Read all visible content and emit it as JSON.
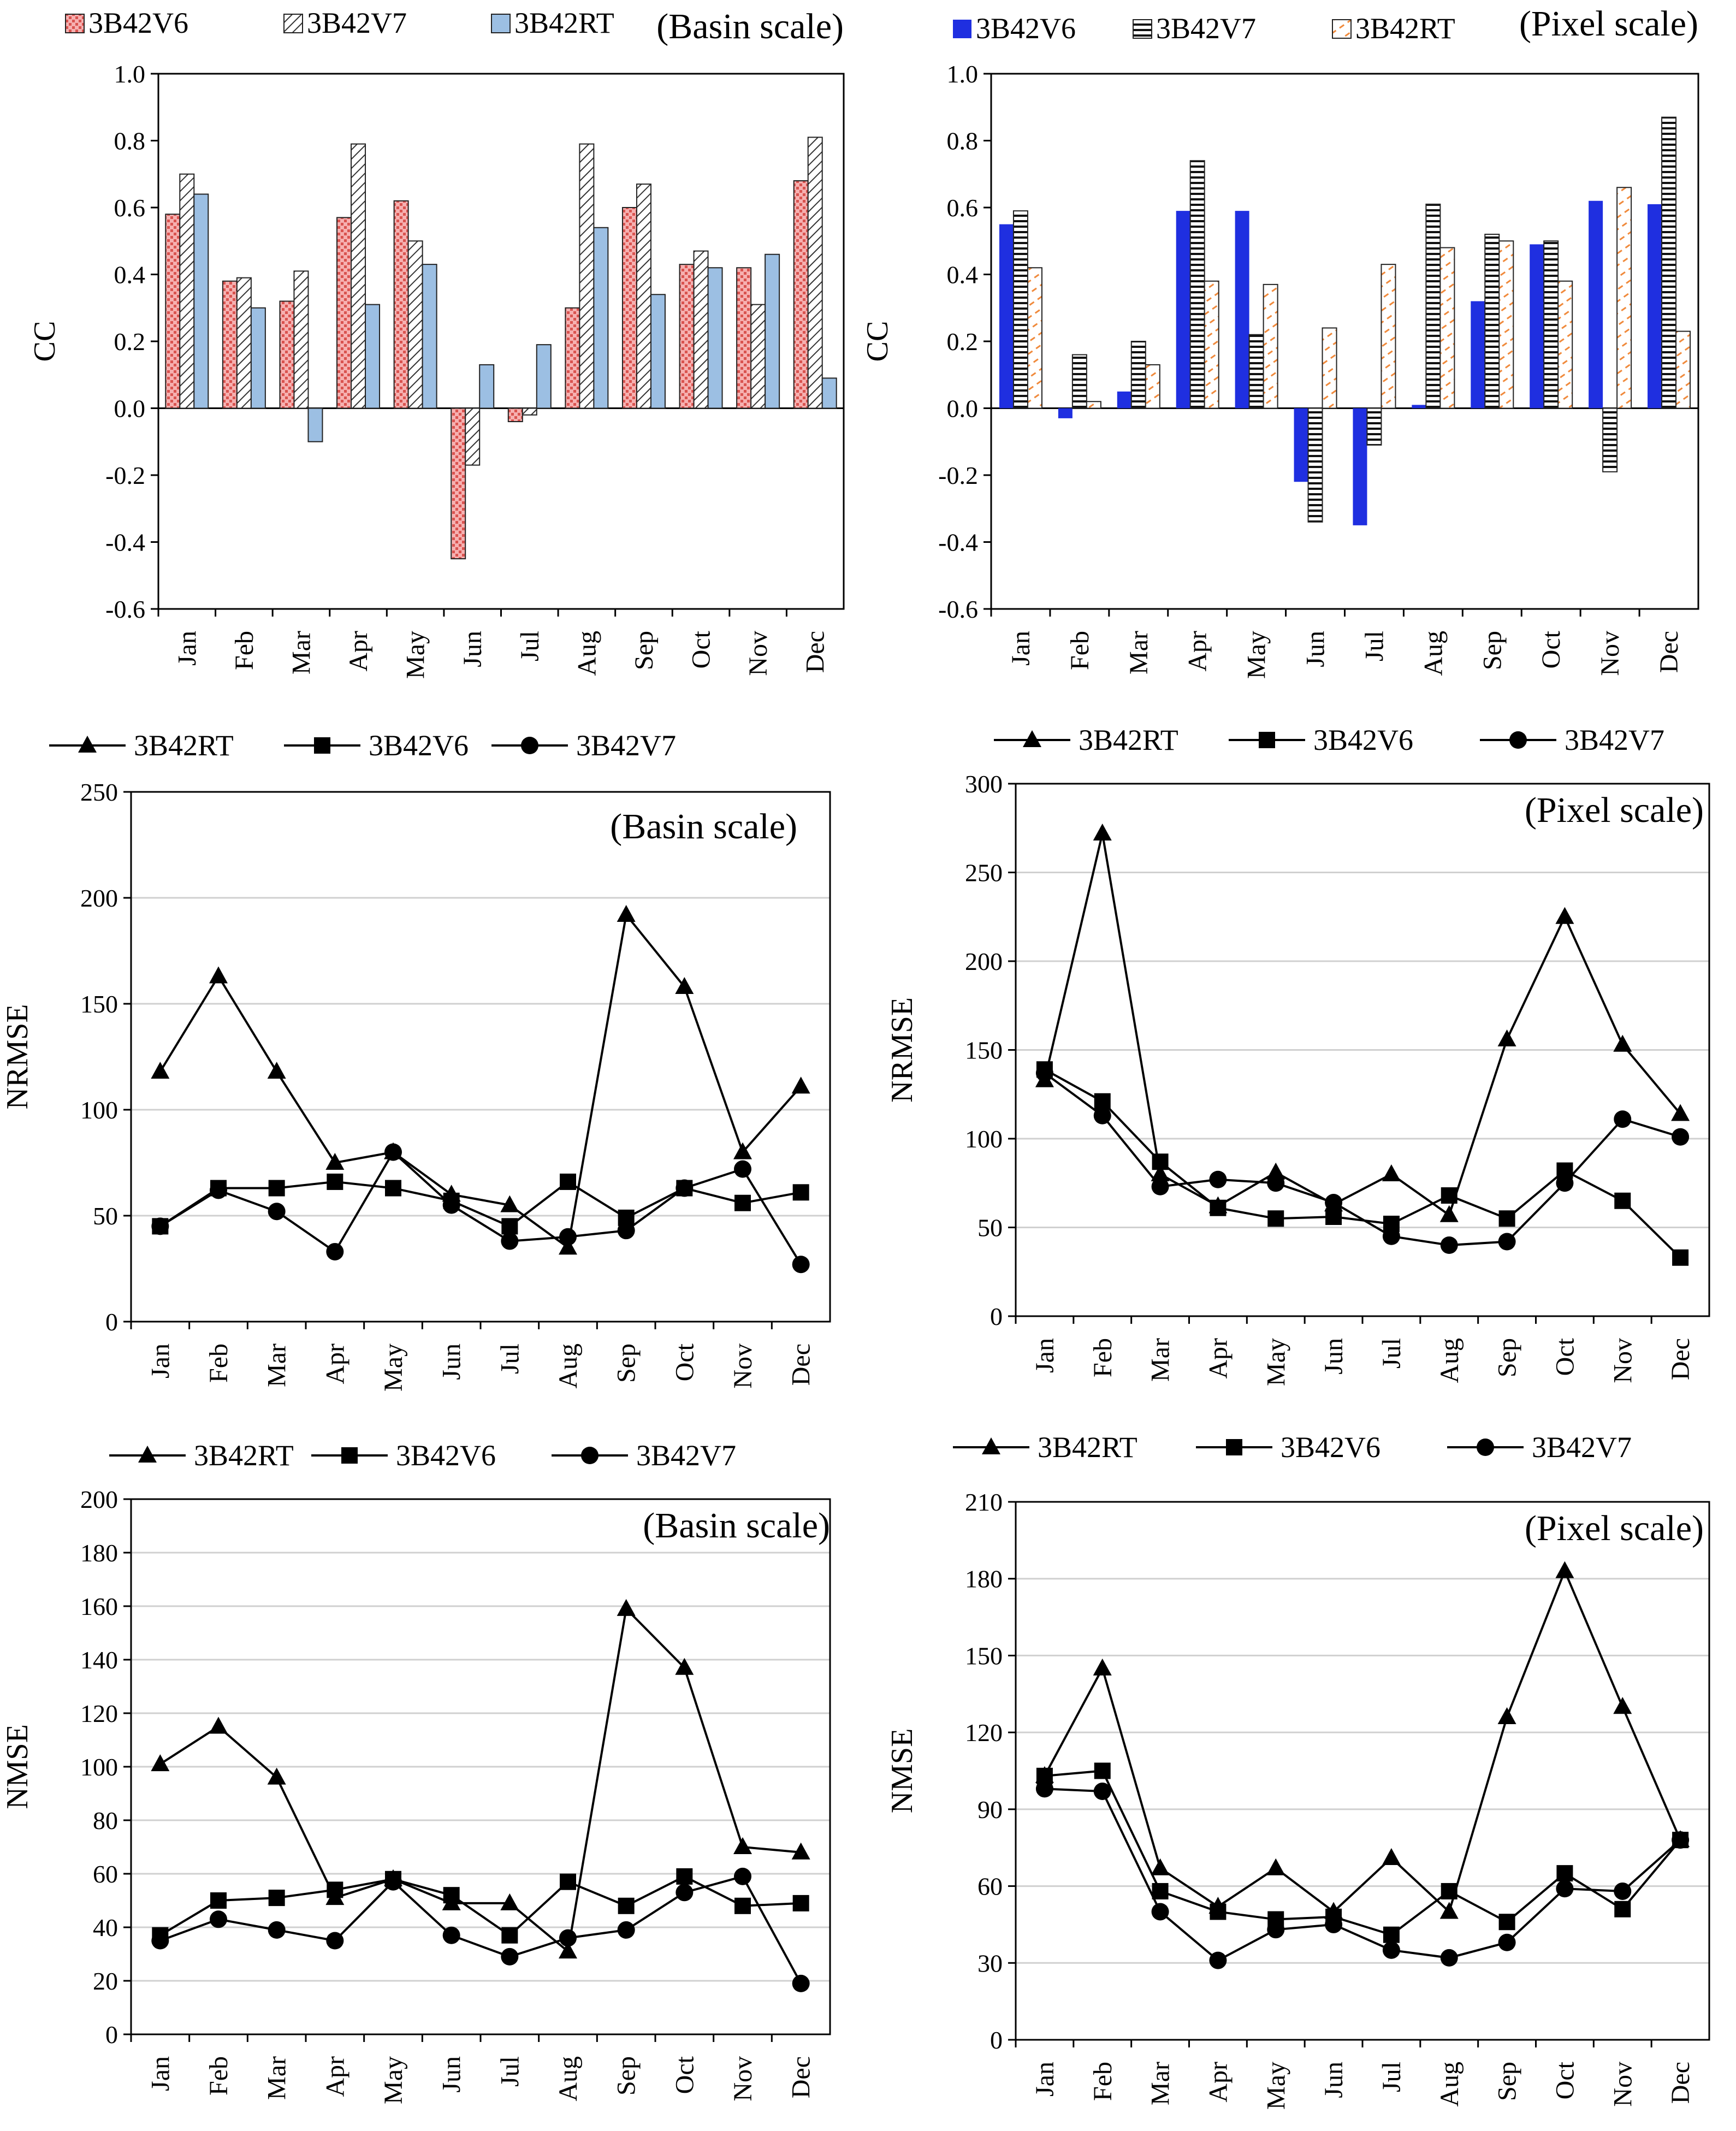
{
  "months": [
    "Jan",
    "Feb",
    "Mar",
    "Apr",
    "May",
    "Jun",
    "Jul",
    "Aug",
    "Sep",
    "Oct",
    "Nov",
    "Dec"
  ],
  "chart_data": [
    {
      "type": "bar",
      "panel": "CC basin",
      "ylabel": "CC",
      "annotation": "(Basin scale)",
      "ylim": [
        -0.6,
        1.0
      ],
      "yticks": [
        -0.6,
        -0.4,
        -0.2,
        0.0,
        0.2,
        0.4,
        0.6,
        0.8,
        1.0
      ],
      "ytick_labels": [
        "-0.6",
        "-0.4",
        "-0.2",
        "0.0",
        "0.2",
        "0.4",
        "0.6",
        "0.8",
        "1.0"
      ],
      "legend_position": "top",
      "series": [
        {
          "name": "3B42V6",
          "values": [
            0.58,
            0.38,
            0.32,
            0.57,
            0.62,
            -0.45,
            -0.04,
            0.3,
            0.6,
            0.43,
            0.42,
            0.68
          ],
          "fill": "#f4a7a7",
          "stroke": "#000000",
          "pattern": "dots-red"
        },
        {
          "name": "3B42V7",
          "values": [
            0.7,
            0.39,
            0.41,
            0.79,
            0.5,
            -0.17,
            -0.02,
            0.79,
            0.67,
            0.47,
            0.31,
            0.81
          ],
          "fill": "#ffffff",
          "stroke": "#000000",
          "pattern": "hatch"
        },
        {
          "name": "3B42RT",
          "values": [
            0.64,
            0.3,
            -0.1,
            0.31,
            0.43,
            0.13,
            0.19,
            0.54,
            0.34,
            0.42,
            0.46,
            0.09
          ],
          "fill": "#9cbfe3",
          "stroke": "#000000",
          "pattern": "solid"
        }
      ]
    },
    {
      "type": "bar",
      "panel": "CC pixel",
      "ylabel": "CC",
      "annotation": "(Pixel scale)",
      "ylim": [
        -0.6,
        1.0
      ],
      "yticks": [
        -0.6,
        -0.4,
        -0.2,
        0.0,
        0.2,
        0.4,
        0.6,
        0.8,
        1.0
      ],
      "ytick_labels": [
        "-0.6",
        "-0.4",
        "-0.2",
        "0.0",
        "0.2",
        "0.4",
        "0.6",
        "0.8",
        "1.0"
      ],
      "legend_position": "top",
      "series": [
        {
          "name": "3B42V6",
          "values": [
            0.55,
            -0.03,
            0.05,
            0.59,
            0.59,
            -0.22,
            -0.35,
            0.01,
            0.32,
            0.49,
            0.62,
            0.61
          ],
          "fill": "#1f2fe0",
          "stroke": "none",
          "pattern": "solid"
        },
        {
          "name": "3B42V7",
          "values": [
            0.59,
            0.16,
            0.2,
            0.74,
            0.22,
            -0.34,
            -0.11,
            0.61,
            0.52,
            0.5,
            -0.19,
            0.87
          ],
          "fill": "#ffffff",
          "stroke": "#000000",
          "pattern": "hstripe"
        },
        {
          "name": "3B42RT",
          "values": [
            0.42,
            0.02,
            0.13,
            0.38,
            0.37,
            0.24,
            0.43,
            0.48,
            0.5,
            0.38,
            0.66,
            0.23
          ],
          "fill": "#ffffff",
          "stroke": "#000000",
          "pattern": "orange-diag"
        }
      ]
    },
    {
      "type": "line",
      "panel": "NRMSE basin",
      "ylabel": "NRMSE",
      "annotation": "(Basin scale)",
      "ylim": [
        0,
        250
      ],
      "yticks": [
        0,
        50,
        100,
        150,
        200,
        250
      ],
      "ytick_labels": [
        "0",
        "50",
        "100",
        "150",
        "200",
        "250"
      ],
      "legend_position": "top",
      "series": [
        {
          "name": "3B42RT",
          "marker": "triangle",
          "values": [
            118,
            163,
            118,
            75,
            80,
            60,
            55,
            35,
            192,
            158,
            80,
            111
          ]
        },
        {
          "name": "3B42V6",
          "marker": "square",
          "values": [
            45,
            63,
            63,
            66,
            63,
            57,
            45,
            66,
            49,
            63,
            56,
            61
          ]
        },
        {
          "name": "3B42V7",
          "marker": "circle",
          "values": [
            45,
            62,
            52,
            33,
            80,
            55,
            38,
            40,
            43,
            63,
            72,
            27
          ]
        }
      ]
    },
    {
      "type": "line",
      "panel": "NRMSE pixel",
      "ylabel": "NRMSE",
      "annotation": "(Pixel scale)",
      "ylim": [
        0,
        300
      ],
      "yticks": [
        0,
        50,
        100,
        150,
        200,
        250,
        300
      ],
      "ytick_labels": [
        "0",
        "50",
        "100",
        "150",
        "200",
        "250",
        "300"
      ],
      "legend_position": "top",
      "series": [
        {
          "name": "3B42RT",
          "marker": "triangle",
          "values": [
            133,
            272,
            80,
            62,
            81,
            63,
            80,
            57,
            156,
            225,
            153,
            114
          ]
        },
        {
          "name": "3B42V6",
          "marker": "square",
          "values": [
            139,
            121,
            87,
            61,
            55,
            56,
            52,
            68,
            55,
            82,
            65,
            33
          ]
        },
        {
          "name": "3B42V7",
          "marker": "circle",
          "values": [
            137,
            113,
            73,
            77,
            75,
            64,
            45,
            40,
            42,
            75,
            111,
            101
          ]
        }
      ]
    },
    {
      "type": "line",
      "panel": "NMSE basin",
      "ylabel": "NMSE",
      "annotation": "(Basin scale)",
      "ylim": [
        0,
        200
      ],
      "yticks": [
        0,
        20,
        40,
        60,
        80,
        100,
        120,
        140,
        160,
        180,
        200
      ],
      "ytick_labels": [
        "0",
        "20",
        "40",
        "60",
        "80",
        "100",
        "120",
        "140",
        "160",
        "180",
        "200"
      ],
      "legend_position": "top",
      "series": [
        {
          "name": "3B42RT",
          "marker": "triangle",
          "values": [
            101,
            115,
            96,
            51,
            58,
            49,
            49,
            31,
            159,
            137,
            70,
            68
          ]
        },
        {
          "name": "3B42V6",
          "marker": "square",
          "values": [
            37,
            50,
            51,
            54,
            58,
            52,
            37,
            57,
            48,
            59,
            48,
            49
          ]
        },
        {
          "name": "3B42V7",
          "marker": "circle",
          "values": [
            35,
            43,
            39,
            35,
            57,
            37,
            29,
            36,
            39,
            53,
            59,
            19
          ]
        }
      ]
    },
    {
      "type": "line",
      "panel": "NMSE pixel",
      "ylabel": "NMSE",
      "annotation": "(Pixel scale)",
      "ylim": [
        0,
        210
      ],
      "yticks": [
        0,
        30,
        60,
        90,
        120,
        150,
        180,
        210
      ],
      "ytick_labels": [
        "0",
        "30",
        "60",
        "90",
        "120",
        "150",
        "180",
        "210"
      ],
      "legend_position": "top",
      "series": [
        {
          "name": "3B42RT",
          "marker": "triangle",
          "values": [
            103,
            145,
            67,
            52,
            67,
            50,
            71,
            50,
            126,
            183,
            130,
            78
          ]
        },
        {
          "name": "3B42V6",
          "marker": "square",
          "values": [
            103,
            105,
            58,
            50,
            47,
            48,
            41,
            58,
            46,
            65,
            51,
            78
          ]
        },
        {
          "name": "3B42V7",
          "marker": "circle",
          "values": [
            98,
            97,
            50,
            31,
            43,
            45,
            35,
            32,
            38,
            59,
            58,
            78
          ]
        }
      ]
    }
  ]
}
